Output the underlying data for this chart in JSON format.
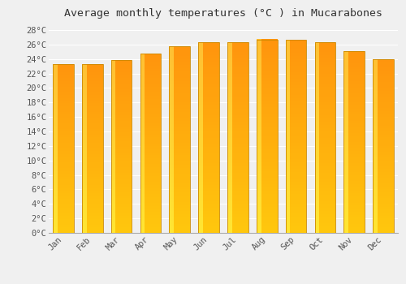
{
  "title": "Average monthly temperatures (°C ) in Mucarabones",
  "months": [
    "Jan",
    "Feb",
    "Mar",
    "Apr",
    "May",
    "Jun",
    "Jul",
    "Aug",
    "Sep",
    "Oct",
    "Nov",
    "Dec"
  ],
  "values": [
    23.3,
    23.3,
    23.8,
    24.7,
    25.7,
    26.3,
    26.3,
    26.7,
    26.6,
    26.3,
    25.1,
    24.0
  ],
  "ylim": [
    0,
    29
  ],
  "yticks": [
    0,
    2,
    4,
    6,
    8,
    10,
    12,
    14,
    16,
    18,
    20,
    22,
    24,
    26,
    28
  ],
  "bar_color_center": "#FFA500",
  "bar_color_edge_dark": "#CC8800",
  "bar_color_highlight": "#FFE066",
  "bar_edge_color": "#CC8800",
  "background_color": "#f0f0f0",
  "grid_color": "#ffffff",
  "title_fontsize": 9.5,
  "tick_fontsize": 7.5,
  "font_family": "monospace"
}
